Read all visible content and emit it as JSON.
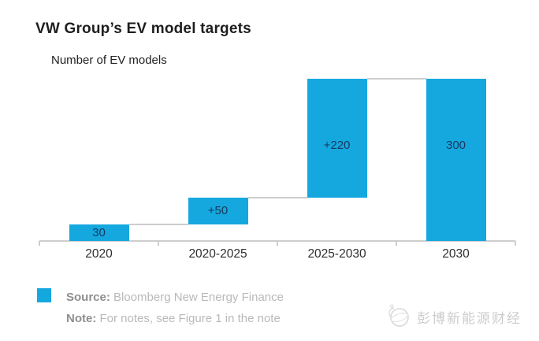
{
  "title": "VW Group’s EV model targets",
  "chart_data": {
    "type": "bar",
    "subtype": "waterfall",
    "title": "VW Group’s EV model targets",
    "ylabel": "Number of EV models",
    "xlabel": "",
    "categories": [
      "2020",
      "2020-2025",
      "2025-2030",
      "2030"
    ],
    "bars": [
      {
        "category": "2020",
        "label": "30",
        "start": 0,
        "end": 30,
        "value": 30
      },
      {
        "category": "2020-2025",
        "label": "+50",
        "start": 30,
        "end": 80,
        "value": 50
      },
      {
        "category": "2025-2030",
        "label": "+220",
        "start": 80,
        "end": 300,
        "value": 220
      },
      {
        "category": "2030",
        "label": "300",
        "start": 0,
        "end": 300,
        "value": 300
      }
    ],
    "ylim": [
      0,
      300
    ],
    "grid": false,
    "legend_position": "none",
    "bar_color": "#15A8DF",
    "bar_label_color": "#17395F",
    "axis_color": "#CDCDCD"
  },
  "footer": {
    "legend_color": "#15A8DF",
    "source_label": "Source:",
    "source_text": " Bloomberg New Energy Finance",
    "note_label": "Note:",
    "note_text": " For notes, see Figure 1 in the note"
  },
  "watermark": {
    "logo": "globe-sketch-icon",
    "text": "彭博新能源财经"
  }
}
